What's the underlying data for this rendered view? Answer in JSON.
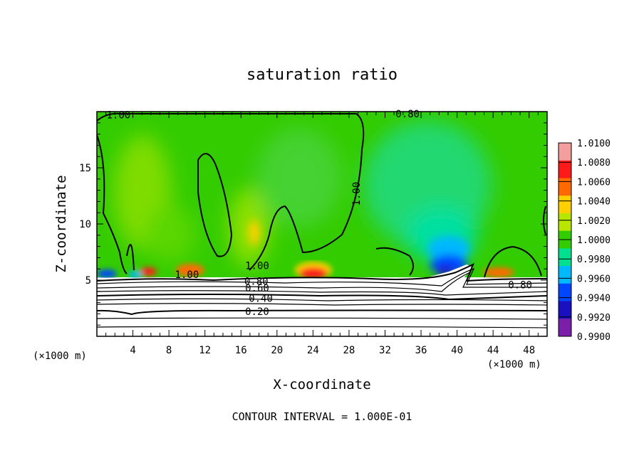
{
  "chart_data": {
    "type": "heatmap",
    "title": "saturation ratio",
    "xlabel": "X-coordinate",
    "ylabel": "Z-coordinate",
    "x_unit": "(×1000 m)",
    "x_unit_right": "(×1000 m)",
    "xlim": [
      0,
      50
    ],
    "ylim": [
      0,
      20
    ],
    "x_ticks": [
      4,
      8,
      12,
      16,
      20,
      24,
      28,
      32,
      36,
      40,
      44,
      48
    ],
    "y_ticks": [
      5,
      10,
      15
    ],
    "footer": "CONTOUR INTERVAL = 1.000E-01",
    "colorbar": {
      "labels": [
        "1.0100",
        "1.0080",
        "1.0060",
        "1.0040",
        "1.0020",
        "1.0000",
        "0.9980",
        "0.9960",
        "0.9940",
        "0.9920",
        "0.9900"
      ],
      "colors": [
        "#f49ea0",
        "#ff1a1a",
        "#ff6a00",
        "#ffd000",
        "#b8e600",
        "#33cc00",
        "#00e090",
        "#00b8ff",
        "#0046ff",
        "#1a10c0",
        "#7a1fa8"
      ]
    },
    "contour_labels": [
      {
        "text": "1.00",
        "x": 2.4,
        "y": 19.7
      },
      {
        "text": "0.80",
        "x": 34.5,
        "y": 19.8
      },
      {
        "text": "1.00",
        "x": 29.2,
        "y": 13
      },
      {
        "text": "1.00",
        "x": 17.8,
        "y": 6.3
      },
      {
        "text": "1.00",
        "x": 10,
        "y": 5.5
      },
      {
        "text": "0.80",
        "x": 17.7,
        "y": 4.9
      },
      {
        "text": "0.60",
        "x": 17.8,
        "y": 4.3
      },
      {
        "text": "0.40",
        "x": 18.2,
        "y": 3.4
      },
      {
        "text": "0.20",
        "x": 17.8,
        "y": 2.2
      },
      {
        "text": "0.80",
        "x": 47,
        "y": 4.6
      }
    ]
  }
}
